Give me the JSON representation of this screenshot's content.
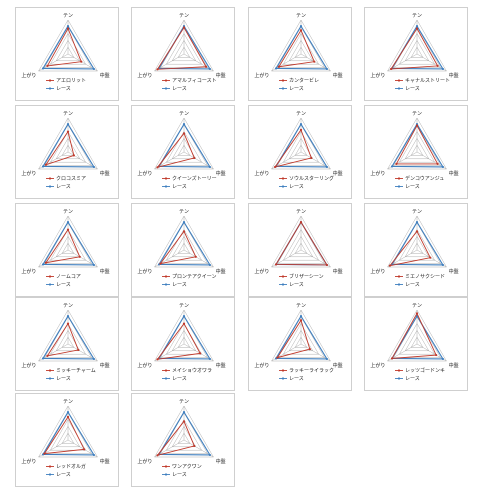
{
  "colors": {
    "horse": "#c0392b",
    "race": "#3f7fbf",
    "grid": "#9a9a9a",
    "border": "#cfcfcf"
  },
  "chart_data": [
    {
      "type": "radar",
      "axes": [
        "テン",
        "中盤",
        "上がり"
      ],
      "series": [
        {
          "name": "アエロリット",
          "values": [
            0.75,
            0.45,
            0.7
          ]
        },
        {
          "name": "レース",
          "values": [
            0.82,
            0.88,
            0.85
          ]
        }
      ]
    },
    {
      "type": "radar",
      "axes": [
        "テン",
        "中盤",
        "上がり"
      ],
      "series": [
        {
          "name": "アマルフィコースト",
          "values": [
            0.78,
            0.75,
            0.9
          ]
        },
        {
          "name": "レース",
          "values": [
            0.82,
            0.88,
            0.85
          ]
        }
      ]
    },
    {
      "type": "radar",
      "axes": [
        "テン",
        "中盤",
        "上がり"
      ],
      "series": [
        {
          "name": "カンタービレ",
          "values": [
            0.7,
            0.45,
            0.75
          ]
        },
        {
          "name": "レース",
          "values": [
            0.82,
            0.88,
            0.85
          ]
        }
      ]
    },
    {
      "type": "radar",
      "axes": [
        "テン",
        "中盤",
        "上がり"
      ],
      "series": [
        {
          "name": "キャナルストリート",
          "values": [
            0.75,
            0.7,
            0.88
          ]
        },
        {
          "name": "レース",
          "values": [
            0.82,
            0.88,
            0.85
          ]
        }
      ]
    },
    {
      "type": "radar",
      "axes": [
        "テン",
        "中盤",
        "上がり"
      ],
      "series": [
        {
          "name": "クロコスミア",
          "values": [
            0.6,
            0.2,
            0.75
          ]
        },
        {
          "name": "レース",
          "values": [
            0.82,
            0.88,
            0.85
          ]
        }
      ]
    },
    {
      "type": "radar",
      "axes": [
        "テン",
        "中盤",
        "上がり"
      ],
      "series": [
        {
          "name": "クイーンズトーリー",
          "values": [
            0.55,
            0.35,
            0.9
          ]
        },
        {
          "name": "レース",
          "values": [
            0.82,
            0.88,
            0.85
          ]
        }
      ]
    },
    {
      "type": "radar",
      "axes": [
        "テン",
        "中盤",
        "上がり"
      ],
      "series": [
        {
          "name": "ソウルスターリング",
          "values": [
            0.65,
            0.35,
            0.88
          ]
        },
        {
          "name": "レース",
          "values": [
            0.82,
            0.88,
            0.85
          ]
        }
      ]
    },
    {
      "type": "radar",
      "axes": [
        "テン",
        "中盤",
        "上がり"
      ],
      "series": [
        {
          "name": "デンコウアンジュ",
          "values": [
            0.78,
            0.7,
            0.7
          ]
        },
        {
          "name": "レース",
          "values": [
            0.82,
            0.88,
            0.85
          ]
        }
      ]
    },
    {
      "type": "radar",
      "axes": [
        "テン",
        "中盤",
        "上がり"
      ],
      "series": [
        {
          "name": "ノームコア",
          "values": [
            0.6,
            0.4,
            0.75
          ]
        },
        {
          "name": "レース",
          "values": [
            0.82,
            0.88,
            0.85
          ]
        }
      ]
    },
    {
      "type": "radar",
      "axes": [
        "テン",
        "中盤",
        "上がり"
      ],
      "series": [
        {
          "name": "プロンテアクイーン",
          "values": [
            0.55,
            0.4,
            0.8
          ]
        },
        {
          "name": "レース",
          "values": [
            0.82,
            0.88,
            0.85
          ]
        }
      ]
    },
    {
      "type": "radar",
      "axes": [
        "テン",
        "中盤",
        "上がり"
      ],
      "series": [
        {
          "name": "ブリザーシーン",
          "values": [
            0.82,
            0.88,
            0.85
          ]
        },
        {
          "name": "レース",
          "values": [
            0.82,
            0.88,
            0.85
          ]
        }
      ]
    },
    {
      "type": "radar",
      "axes": [
        "テン",
        "中盤",
        "上がり"
      ],
      "series": [
        {
          "name": "ミエノサクシード",
          "values": [
            0.55,
            0.45,
            0.92
          ]
        },
        {
          "name": "レース",
          "values": [
            0.82,
            0.88,
            0.85
          ]
        }
      ]
    },
    {
      "type": "radar",
      "axes": [
        "テン",
        "中盤",
        "上がり"
      ],
      "series": [
        {
          "name": "ミッキーチャーム",
          "values": [
            0.6,
            0.35,
            0.7
          ]
        },
        {
          "name": "レース",
          "values": [
            0.82,
            0.88,
            0.85
          ]
        }
      ]
    },
    {
      "type": "radar",
      "axes": [
        "テン",
        "中盤",
        "上がり"
      ],
      "series": [
        {
          "name": "メイショウオワラ",
          "values": [
            0.6,
            0.55,
            0.9
          ]
        },
        {
          "name": "レース",
          "values": [
            0.82,
            0.88,
            0.85
          ]
        }
      ]
    },
    {
      "type": "radar",
      "axes": [
        "テン",
        "中盤",
        "上がり"
      ],
      "series": [
        {
          "name": "ラッキーライラック",
          "values": [
            0.7,
            0.3,
            0.8
          ]
        },
        {
          "name": "レース",
          "values": [
            0.82,
            0.88,
            0.85
          ]
        }
      ]
    },
    {
      "type": "radar",
      "axes": [
        "テン",
        "中盤",
        "上がり"
      ],
      "series": [
        {
          "name": "レッツゴードンキ",
          "values": [
            0.9,
            0.65,
            0.85
          ]
        },
        {
          "name": "レース",
          "values": [
            0.82,
            0.88,
            0.85
          ]
        }
      ]
    },
    {
      "type": "radar",
      "axes": [
        "テン",
        "中盤",
        "上がり"
      ],
      "series": [
        {
          "name": "レッドオルガ",
          "values": [
            0.68,
            0.55,
            0.8
          ]
        },
        {
          "name": "レース",
          "values": [
            0.82,
            0.88,
            0.85
          ]
        }
      ]
    },
    {
      "type": "radar",
      "axes": [
        "テン",
        "中盤",
        "上がり"
      ],
      "series": [
        {
          "name": "ワンアクワン",
          "values": [
            0.55,
            0.35,
            0.9
          ]
        },
        {
          "name": "レース",
          "values": [
            0.82,
            0.88,
            0.85
          ]
        }
      ]
    }
  ]
}
